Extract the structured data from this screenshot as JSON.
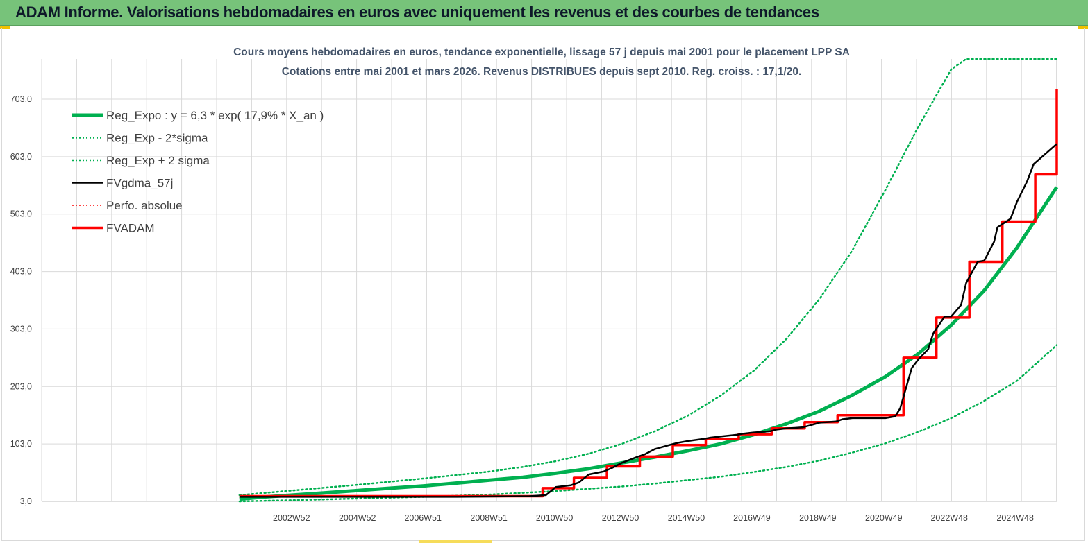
{
  "header": {
    "title": "ADAM Informe. Valorisations hebdomadaires en euros avec uniquement les revenus et des courbes de tendances"
  },
  "colors": {
    "banner": "#77c37a",
    "trend": "#00b050",
    "fv": "#000000",
    "adam": "#ff0000",
    "grid": "#d9d9d9"
  },
  "chart_data": {
    "type": "line",
    "title": "Cours moyens hebdomadaires en euros, tendance exponentielle, lissage 57 j depuis mai 2001 pour le placement LPP SA",
    "subtitle": "Cotations entre mai 2001 et mars 2026. Revenus DISTRIBUES depuis sept 2010. Reg. croiss. : 17,1/20.",
    "xlabel": "",
    "ylabel": "",
    "y_ticks": [
      "3,0",
      "103,0",
      "203,0",
      "303,0",
      "403,0",
      "503,0",
      "603,0",
      "703,0"
    ],
    "x_ticks": [
      {
        "label": "2002W52",
        "x": 2002.98
      },
      {
        "label": "2004W52",
        "x": 2004.98
      },
      {
        "label": "2006W51",
        "x": 2006.97
      },
      {
        "label": "2008W51",
        "x": 2008.97
      },
      {
        "label": "2010W50",
        "x": 2010.96
      },
      {
        "label": "2012W50",
        "x": 2012.96
      },
      {
        "label": "2014W50",
        "x": 2014.96
      },
      {
        "label": "2016W49",
        "x": 2016.95
      },
      {
        "label": "2018W49",
        "x": 2018.95
      },
      {
        "label": "2020W49",
        "x": 2020.95
      },
      {
        "label": "2022W48",
        "x": 2022.94
      },
      {
        "label": "2024W48",
        "x": 2024.94
      }
    ],
    "xlim": [
      1995.4,
      2026.2
    ],
    "ylim": [
      3,
      773
    ],
    "grid": true,
    "legend_position": "top-left",
    "series": [
      {
        "name": "Reg_Expo : y = 6,3 * exp( 17,9% *  X_an )",
        "color": "#00b050",
        "style": "solid",
        "width": 5,
        "x": [
          2001.4,
          2002,
          2003,
          2004,
          2005,
          2006,
          2007,
          2008,
          2009,
          2010,
          2011,
          2012,
          2013,
          2014,
          2015,
          2016,
          2017,
          2018,
          2019,
          2020,
          2021,
          2022,
          2023,
          2024,
          2025,
          2026.2
        ],
        "y": [
          7,
          10,
          14,
          18,
          22,
          26,
          30,
          35,
          40,
          45,
          52,
          60,
          70,
          80,
          91,
          103,
          119,
          138,
          160,
          188,
          220,
          260,
          310,
          370,
          445,
          550
        ]
      },
      {
        "name": "Reg_Exp - 2*sigma",
        "color": "#00b050",
        "style": "dotted",
        "width": 2.5,
        "x": [
          2001.4,
          2003,
          2005,
          2007,
          2009,
          2010,
          2011,
          2012,
          2013,
          2014,
          2015,
          2016,
          2017,
          2018,
          2019,
          2020,
          2021,
          2022,
          2023,
          2024,
          2025,
          2026.2
        ],
        "y": [
          3,
          5,
          8,
          11,
          15,
          18,
          21,
          25,
          29,
          34,
          40,
          46,
          54,
          63,
          74,
          88,
          104,
          124,
          148,
          178,
          213,
          275
        ]
      },
      {
        "name": "Reg_Exp + 2 sigma",
        "color": "#00b050",
        "style": "dotted",
        "width": 2.5,
        "x": [
          2001.4,
          2003,
          2005,
          2007,
          2009,
          2010,
          2011,
          2012,
          2013,
          2014,
          2015,
          2016,
          2017,
          2018,
          2019,
          2020,
          2021,
          2022,
          2023,
          2023.45,
          2024,
          2025,
          2026.2
        ],
        "y": [
          14,
          22,
          32,
          43,
          55,
          63,
          73,
          86,
          103,
          125,
          152,
          187,
          230,
          286,
          355,
          440,
          545,
          655,
          755,
          773,
          773,
          773,
          773
        ]
      },
      {
        "name": "FVgdma_57j",
        "color": "#000000",
        "style": "solid",
        "width": 2.5,
        "x": [
          2001.4,
          2008,
          2010.2,
          2010.7,
          2011,
          2011.45,
          2011.7,
          2012,
          2012.45,
          2012.7,
          2013,
          2013.45,
          2013.7,
          2014,
          2014.5,
          2014.7,
          2015,
          2015.5,
          2015.7,
          2016,
          2016.5,
          2016.7,
          2017,
          2017.5,
          2017.7,
          2018,
          2018.5,
          2018.7,
          2019,
          2019.5,
          2019.7,
          2020,
          2021,
          2021.3,
          2021.45,
          2021.8,
          2022,
          2022.3,
          2022.45,
          2022.8,
          2023,
          2023.3,
          2023.45,
          2023.8,
          2024,
          2024.3,
          2024.4,
          2024.8,
          2025,
          2025.3,
          2025.5,
          2026.2
        ],
        "y": [
          11,
          11,
          12,
          14,
          28,
          31,
          36,
          50,
          55,
          61,
          70,
          80,
          85,
          94,
          102,
          105,
          108,
          112,
          114,
          116,
          119,
          121,
          123,
          125,
          128,
          130,
          132,
          135,
          140,
          142,
          146,
          148,
          148,
          151,
          165,
          235,
          250,
          268,
          295,
          325,
          325,
          345,
          383,
          420,
          422,
          455,
          480,
          495,
          525,
          560,
          590,
          625
        ]
      },
      {
        "name": "Perfo. absolue",
        "color": "#ff0000",
        "style": "dotted",
        "width": 1.5,
        "x": [],
        "y": []
      },
      {
        "name": "FVADAM",
        "color": "#ff0000",
        "style": "step",
        "width": 3.5,
        "x": [
          2001.4,
          2010.6,
          2011.55,
          2012.55,
          2013.55,
          2014.55,
          2015.55,
          2016.55,
          2017.55,
          2018.55,
          2019.55,
          2021.55,
          2022.55,
          2023.55,
          2024.55,
          2025.55,
          2026.2
        ],
        "y": [
          12,
          26,
          44,
          64,
          81,
          101,
          112,
          120,
          130,
          141,
          153,
          253,
          323,
          420,
          490,
          572,
          720
        ]
      }
    ]
  }
}
